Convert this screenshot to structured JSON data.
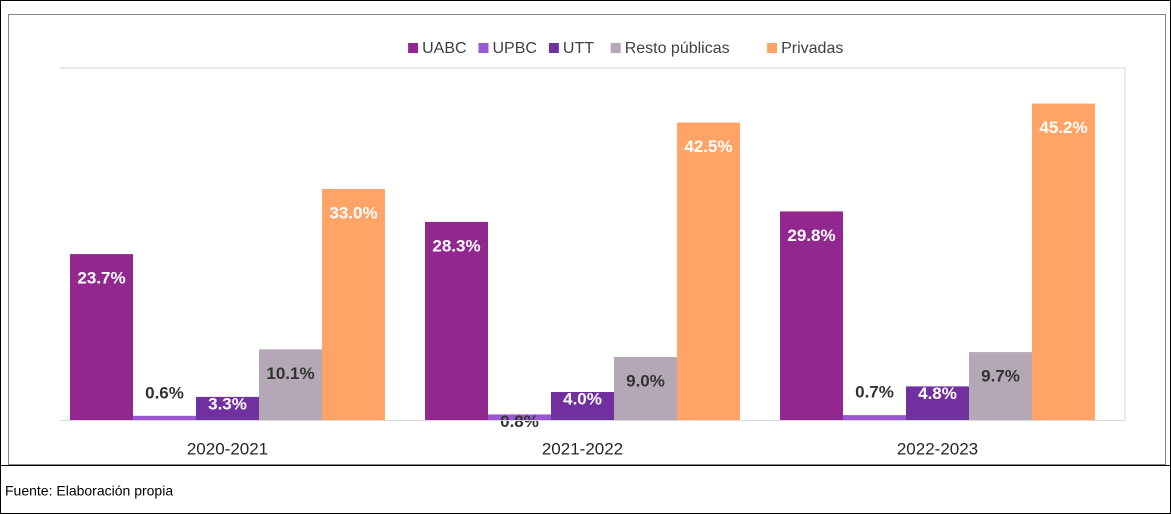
{
  "chart_data": {
    "type": "bar",
    "categories": [
      "2020-2021",
      "2021-2022",
      "2022-2023"
    ],
    "series": [
      {
        "name": "UABC",
        "color": "#92278f",
        "values": [
          23.7,
          28.3,
          29.8
        ],
        "value_labels": [
          "23.7%",
          "28.3%",
          "29.8%"
        ]
      },
      {
        "name": "UPBC",
        "color": "#9b57d3",
        "values": [
          0.6,
          0.8,
          0.7
        ],
        "value_labels": [
          "0.6%",
          "0.8%",
          "0.7%"
        ]
      },
      {
        "name": "UTT",
        "color": "#7030a0",
        "values": [
          3.3,
          4.0,
          4.8
        ],
        "value_labels": [
          "3.3%",
          "4.0%",
          "4.8%"
        ]
      },
      {
        "name": "Resto públicas",
        "color": "#b4a7b6",
        "values": [
          10.1,
          9.0,
          9.7
        ],
        "value_labels": [
          "10.1%",
          "9.0%",
          "9.7%"
        ]
      },
      {
        "name": "Privadas",
        "color": "#ffa366",
        "values": [
          33.0,
          42.5,
          45.2
        ],
        "value_labels": [
          "33.0%",
          "42.5%",
          "45.2%"
        ]
      }
    ],
    "ylim": [
      0,
      50
    ],
    "legend": "top",
    "source": "Fuente: Elaboración propia"
  }
}
